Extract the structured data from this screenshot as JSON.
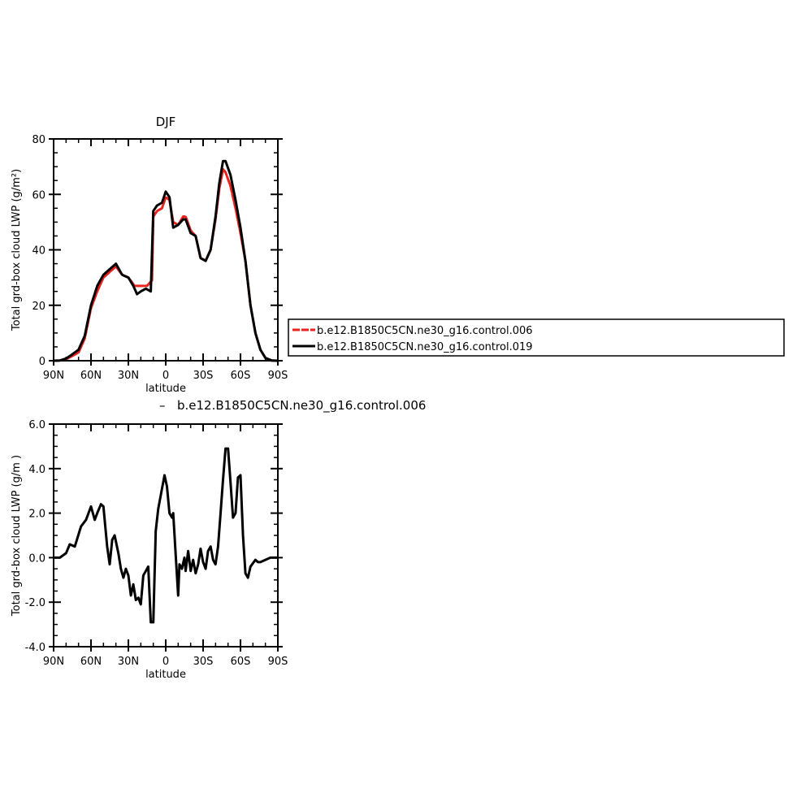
{
  "chart_data": [
    {
      "type": "line",
      "title": "DJF",
      "xlabel": "latitude",
      "ylabel": "Total grd-box cloud LWP (g/m²)",
      "ylim": [
        0,
        80
      ],
      "yticks": [
        "0",
        "20",
        "40",
        "60",
        "80"
      ],
      "xlim": [
        90,
        -90
      ],
      "xticks": [
        "90N",
        "60N",
        "30N",
        "0",
        "30S",
        "60S",
        "90S"
      ],
      "legend_placement": "right",
      "series": [
        {
          "name": "b.e12.B1850C5CN.ne30_g16.control.006",
          "color": "#e8221d",
          "style": "dashed",
          "points": [
            [
              90,
              0
            ],
            [
              85,
              0.1
            ],
            [
              80,
              0.5
            ],
            [
              76,
              1.5
            ],
            [
              70,
              3
            ],
            [
              65,
              8
            ],
            [
              60,
              19
            ],
            [
              55,
              25
            ],
            [
              50,
              30
            ],
            [
              45,
              32
            ],
            [
              40,
              34
            ],
            [
              35,
              31
            ],
            [
              30,
              30
            ],
            [
              25,
              27
            ],
            [
              20,
              27
            ],
            [
              15,
              27
            ],
            [
              11,
              29
            ],
            [
              10,
              52
            ],
            [
              7,
              54
            ],
            [
              3,
              55
            ],
            [
              0,
              59
            ],
            [
              -3,
              58
            ],
            [
              -6,
              50
            ],
            [
              -10,
              49
            ],
            [
              -14,
              52
            ],
            [
              -16,
              52
            ],
            [
              -20,
              47
            ],
            [
              -24,
              45
            ],
            [
              -28,
              37
            ],
            [
              -32,
              36
            ],
            [
              -36,
              40
            ],
            [
              -40,
              51
            ],
            [
              -43,
              62
            ],
            [
              -46,
              69
            ],
            [
              -48,
              68
            ],
            [
              -52,
              63
            ],
            [
              -56,
              55
            ],
            [
              -60,
              46
            ],
            [
              -64,
              36
            ],
            [
              -68,
              20
            ],
            [
              -72,
              10
            ],
            [
              -76,
              4
            ],
            [
              -80,
              1
            ],
            [
              -85,
              0.1
            ],
            [
              -90,
              0
            ]
          ]
        },
        {
          "name": "b.e12.B1850C5CN.ne30_g16.control.019",
          "color": "#000000",
          "style": "solid",
          "points": [
            [
              90,
              0
            ],
            [
              85,
              0.1
            ],
            [
              80,
              0.8
            ],
            [
              76,
              2
            ],
            [
              70,
              4
            ],
            [
              65,
              9
            ],
            [
              60,
              20
            ],
            [
              55,
              27
            ],
            [
              50,
              31
            ],
            [
              45,
              33
            ],
            [
              40,
              35
            ],
            [
              35,
              31
            ],
            [
              30,
              30
            ],
            [
              26,
              27
            ],
            [
              23,
              24
            ],
            [
              20,
              25
            ],
            [
              16,
              26
            ],
            [
              12,
              25
            ],
            [
              10,
              54
            ],
            [
              7,
              56
            ],
            [
              3,
              57
            ],
            [
              0,
              61
            ],
            [
              -3,
              59
            ],
            [
              -6,
              48
            ],
            [
              -10,
              49
            ],
            [
              -14,
              51
            ],
            [
              -16,
              51
            ],
            [
              -20,
              46
            ],
            [
              -24,
              45
            ],
            [
              -28,
              37
            ],
            [
              -32,
              36
            ],
            [
              -36,
              40
            ],
            [
              -40,
              52
            ],
            [
              -43,
              64
            ],
            [
              -46,
              72
            ],
            [
              -48,
              72
            ],
            [
              -52,
              67
            ],
            [
              -56,
              58
            ],
            [
              -60,
              48
            ],
            [
              -64,
              36
            ],
            [
              -68,
              20
            ],
            [
              -72,
              10
            ],
            [
              -76,
              4
            ],
            [
              -80,
              1
            ],
            [
              -85,
              0.1
            ],
            [
              -90,
              0
            ]
          ]
        }
      ]
    },
    {
      "type": "line",
      "title": "b.e12.B1850C5CN.ne30_g16.control.006",
      "title_prefix": "–",
      "xlabel": "latitude",
      "ylabel": "Total grd-box cloud LWP (g/m )",
      "ylim": [
        -4.0,
        6.0
      ],
      "yticks": [
        "-4.0",
        "-2.0",
        "0.0",
        "2.0",
        "4.0",
        "6.0"
      ],
      "xlim": [
        90,
        -90
      ],
      "xticks": [
        "90N",
        "60N",
        "30N",
        "0",
        "30S",
        "60S",
        "90S"
      ],
      "series": [
        {
          "color": "#000000",
          "style": "solid",
          "points": [
            [
              90,
              0
            ],
            [
              85,
              0
            ],
            [
              80,
              0.2
            ],
            [
              77,
              0.6
            ],
            [
              73,
              0.5
            ],
            [
              68,
              1.4
            ],
            [
              64,
              1.7
            ],
            [
              60,
              2.3
            ],
            [
              57,
              1.7
            ],
            [
              55,
              2
            ],
            [
              52,
              2.4
            ],
            [
              50,
              2.3
            ],
            [
              47,
              0.5
            ],
            [
              45,
              -0.3
            ],
            [
              43,
              0.8
            ],
            [
              41,
              1
            ],
            [
              38,
              0.2
            ],
            [
              36,
              -0.5
            ],
            [
              34,
              -0.9
            ],
            [
              32,
              -0.5
            ],
            [
              30,
              -0.8
            ],
            [
              28,
              -1.7
            ],
            [
              26,
              -1.2
            ],
            [
              24,
              -1.9
            ],
            [
              22,
              -1.8
            ],
            [
              20,
              -2.1
            ],
            [
              18,
              -0.8
            ],
            [
              16,
              -0.6
            ],
            [
              14,
              -0.4
            ],
            [
              12,
              -2.9
            ],
            [
              10,
              -2.9
            ],
            [
              8,
              1.2
            ],
            [
              6,
              2.2
            ],
            [
              3,
              3.1
            ],
            [
              1,
              3.7
            ],
            [
              -1,
              3.2
            ],
            [
              -3,
              2.0
            ],
            [
              -5,
              1.8
            ],
            [
              -6,
              2.0
            ],
            [
              -8,
              0.1
            ],
            [
              -10,
              -1.7
            ],
            [
              -11,
              -0.3
            ],
            [
              -13,
              -0.5
            ],
            [
              -15,
              0.0
            ],
            [
              -16,
              -0.6
            ],
            [
              -18,
              0.3
            ],
            [
              -20,
              -0.6
            ],
            [
              -22,
              -0.1
            ],
            [
              -24,
              -0.7
            ],
            [
              -26,
              -0.3
            ],
            [
              -28,
              0.4
            ],
            [
              -30,
              -0.2
            ],
            [
              -32,
              -0.5
            ],
            [
              -34,
              0.3
            ],
            [
              -36,
              0.5
            ],
            [
              -38,
              -0.1
            ],
            [
              -40,
              -0.3
            ],
            [
              -42,
              0.5
            ],
            [
              -44,
              2.0
            ],
            [
              -46,
              3.5
            ],
            [
              -48,
              4.9
            ],
            [
              -50,
              4.9
            ],
            [
              -52,
              3.4
            ],
            [
              -54,
              1.8
            ],
            [
              -56,
              2.0
            ],
            [
              -58,
              3.6
            ],
            [
              -60,
              3.7
            ],
            [
              -62,
              1.0
            ],
            [
              -64,
              -0.7
            ],
            [
              -66,
              -0.9
            ],
            [
              -68,
              -0.4
            ],
            [
              -72,
              -0.1
            ],
            [
              -74,
              -0.2
            ],
            [
              -76,
              -0.2
            ],
            [
              -80,
              -0.1
            ],
            [
              -84,
              0.0
            ],
            [
              -90,
              0.0
            ]
          ]
        }
      ]
    }
  ]
}
